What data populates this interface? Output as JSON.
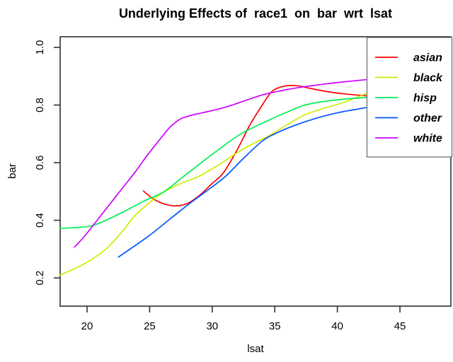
{
  "chart_data": {
    "type": "line",
    "title": "Underlying Effects of  race1  on  bar  wrt  lsat",
    "xlabel": "lsat",
    "ylabel": "bar",
    "x_ticks": [
      "20",
      "25",
      "30",
      "35",
      "40",
      "45"
    ],
    "y_ticks": [
      "0.2",
      "0.4",
      "0.6",
      "0.8",
      "1.0"
    ],
    "xlim": [
      17.85,
      49.07
    ],
    "ylim": [
      0.102,
      1.037
    ],
    "grid": false,
    "legend_position": "top-right",
    "axis_color": "#303030",
    "legend_border_color": "#666666",
    "series": [
      {
        "name": "asian",
        "color": "#FF0000",
        "points": [
          [
            24.5,
            0.502
          ],
          [
            25.3,
            0.474
          ],
          [
            26.2,
            0.456
          ],
          [
            27.1,
            0.45
          ],
          [
            28.0,
            0.458
          ],
          [
            29.0,
            0.487
          ],
          [
            30.0,
            0.528
          ],
          [
            30.9,
            0.565
          ],
          [
            32.0,
            0.645
          ],
          [
            33.0,
            0.73
          ],
          [
            34.0,
            0.8
          ],
          [
            34.8,
            0.848
          ],
          [
            35.8,
            0.866
          ],
          [
            36.8,
            0.867
          ],
          [
            37.8,
            0.858
          ],
          [
            39.0,
            0.848
          ],
          [
            40.5,
            0.839
          ],
          [
            42.3,
            0.832
          ]
        ]
      },
      {
        "name": "black",
        "color": "#CCEE00",
        "points": [
          [
            17.85,
            0.21
          ],
          [
            19.0,
            0.232
          ],
          [
            20.3,
            0.262
          ],
          [
            21.5,
            0.3
          ],
          [
            22.7,
            0.355
          ],
          [
            23.8,
            0.415
          ],
          [
            25.0,
            0.462
          ],
          [
            26.1,
            0.497
          ],
          [
            27.5,
            0.528
          ],
          [
            28.9,
            0.552
          ],
          [
            30.5,
            0.592
          ],
          [
            32.5,
            0.648
          ],
          [
            34.5,
            0.693
          ],
          [
            36.0,
            0.732
          ],
          [
            37.4,
            0.766
          ],
          [
            38.8,
            0.787
          ],
          [
            40.2,
            0.805
          ],
          [
            41.4,
            0.824
          ],
          [
            42.3,
            0.84
          ]
        ]
      },
      {
        "name": "hisp",
        "color": "#00EE55",
        "points": [
          [
            17.85,
            0.372
          ],
          [
            19.0,
            0.375
          ],
          [
            20.3,
            0.38
          ],
          [
            21.6,
            0.402
          ],
          [
            23.2,
            0.436
          ],
          [
            24.6,
            0.468
          ],
          [
            26.1,
            0.498
          ],
          [
            27.5,
            0.545
          ],
          [
            28.9,
            0.592
          ],
          [
            30.5,
            0.645
          ],
          [
            32.3,
            0.7
          ],
          [
            34.5,
            0.747
          ],
          [
            36.0,
            0.776
          ],
          [
            37.4,
            0.8
          ],
          [
            39.0,
            0.813
          ],
          [
            40.9,
            0.822
          ],
          [
            42.3,
            0.826
          ]
        ]
      },
      {
        "name": "other",
        "color": "#0055FF",
        "points": [
          [
            22.5,
            0.272
          ],
          [
            23.5,
            0.302
          ],
          [
            25.0,
            0.348
          ],
          [
            26.5,
            0.4
          ],
          [
            28.0,
            0.452
          ],
          [
            29.5,
            0.5
          ],
          [
            31.0,
            0.55
          ],
          [
            32.5,
            0.615
          ],
          [
            34.0,
            0.675
          ],
          [
            35.0,
            0.7
          ],
          [
            36.5,
            0.728
          ],
          [
            38.0,
            0.75
          ],
          [
            40.0,
            0.773
          ],
          [
            42.3,
            0.791
          ]
        ]
      },
      {
        "name": "white",
        "color": "#CC00FF",
        "points": [
          [
            19.0,
            0.307
          ],
          [
            19.8,
            0.345
          ],
          [
            20.8,
            0.4
          ],
          [
            21.8,
            0.455
          ],
          [
            22.8,
            0.51
          ],
          [
            23.8,
            0.565
          ],
          [
            24.8,
            0.625
          ],
          [
            25.8,
            0.68
          ],
          [
            26.6,
            0.722
          ],
          [
            27.4,
            0.75
          ],
          [
            28.2,
            0.763
          ],
          [
            29.2,
            0.773
          ],
          [
            30.4,
            0.785
          ],
          [
            31.6,
            0.8
          ],
          [
            32.8,
            0.818
          ],
          [
            34.0,
            0.835
          ],
          [
            35.2,
            0.847
          ],
          [
            36.4,
            0.857
          ],
          [
            37.6,
            0.865
          ],
          [
            39.0,
            0.873
          ],
          [
            40.6,
            0.881
          ],
          [
            42.3,
            0.888
          ]
        ]
      }
    ]
  }
}
